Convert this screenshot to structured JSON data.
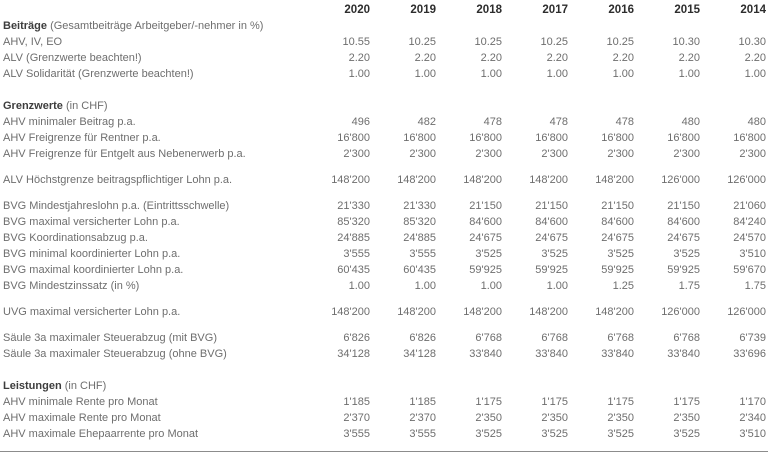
{
  "table": {
    "years": [
      "2020",
      "2019",
      "2018",
      "2017",
      "2016",
      "2015",
      "2014"
    ],
    "colors": {
      "text": "#6e6e6e",
      "heading": "#3d3d3d",
      "years": "#2d2d2d",
      "rule": "#8c8c8c"
    },
    "sections": [
      {
        "title": "Beiträge",
        "note": "(Gesamtbeiträge Arbeitgeber/-nehmer in %)",
        "groups": [
          [
            {
              "label": "AHV, IV, EO",
              "values": [
                "10.55",
                "10.25",
                "10.25",
                "10.25",
                "10.25",
                "10.30",
                "10.30"
              ]
            },
            {
              "label": "ALV (Grenzwerte beachten!)",
              "values": [
                "2.20",
                "2.20",
                "2.20",
                "2.20",
                "2.20",
                "2.20",
                "2.20"
              ]
            },
            {
              "label": "ALV Solidarität (Grenzwerte beachten!)",
              "values": [
                "1.00",
                "1.00",
                "1.00",
                "1.00",
                "1.00",
                "1.00",
                "1.00"
              ]
            }
          ]
        ]
      },
      {
        "title": "Grenzwerte",
        "note": "(in CHF)",
        "groups": [
          [
            {
              "label": "AHV minimaler Beitrag p.a.",
              "values": [
                "496",
                "482",
                "478",
                "478",
                "478",
                "480",
                "480"
              ]
            },
            {
              "label": "AHV Freigrenze für Rentner p.a.",
              "values": [
                "16'800",
                "16'800",
                "16'800",
                "16'800",
                "16'800",
                "16'800",
                "16'800"
              ]
            },
            {
              "label": "AHV Freigrenze für Entgelt aus Nebenerwerb p.a.",
              "values": [
                "2'300",
                "2'300",
                "2'300",
                "2'300",
                "2'300",
                "2'300",
                "2'300"
              ]
            }
          ],
          [
            {
              "label": "ALV Höchstgrenze beitragspflichtiger Lohn p.a.",
              "values": [
                "148'200",
                "148'200",
                "148'200",
                "148'200",
                "148'200",
                "126'000",
                "126'000"
              ]
            }
          ],
          [
            {
              "label": "BVG Mindestjahreslohn p.a. (Eintrittsschwelle)",
              "values": [
                "21'330",
                "21'330",
                "21'150",
                "21'150",
                "21'150",
                "21'150",
                "21'060"
              ]
            },
            {
              "label": "BVG maximal versicherter Lohn p.a.",
              "values": [
                "85'320",
                "85'320",
                "84'600",
                "84'600",
                "84'600",
                "84'600",
                "84'240"
              ]
            },
            {
              "label": "BVG Koordinationsabzug p.a.",
              "values": [
                "24'885",
                "24'885",
                "24'675",
                "24'675",
                "24'675",
                "24'675",
                "24'570"
              ]
            },
            {
              "label": "BVG minimal koordinierter Lohn p.a.",
              "values": [
                "3'555",
                "3'555",
                "3'525",
                "3'525",
                "3'525",
                "3'525",
                "3'510"
              ]
            },
            {
              "label": "BVG maximal koordinierter Lohn p.a.",
              "values": [
                "60'435",
                "60'435",
                "59'925",
                "59'925",
                "59'925",
                "59'925",
                "59'670"
              ]
            },
            {
              "label": "BVG Mindestzinssatz (in %)",
              "values": [
                "1.00",
                "1.00",
                "1.00",
                "1.00",
                "1.25",
                "1.75",
                "1.75"
              ]
            }
          ],
          [
            {
              "label": "UVG maximal versicherter Lohn p.a.",
              "values": [
                "148'200",
                "148'200",
                "148'200",
                "148'200",
                "148'200",
                "126'000",
                "126'000"
              ]
            }
          ],
          [
            {
              "label": "Säule 3a maximaler Steuerabzug (mit BVG)",
              "values": [
                "6'826",
                "6'826",
                "6'768",
                "6'768",
                "6'768",
                "6'768",
                "6'739"
              ]
            },
            {
              "label": "Säule 3a maximaler Steuerabzug (ohne BVG)",
              "values": [
                "34'128",
                "34'128",
                "33'840",
                "33'840",
                "33'840",
                "33'840",
                "33'696"
              ]
            }
          ]
        ]
      },
      {
        "title": "Leistungen",
        "note": "(in CHF)",
        "groups": [
          [
            {
              "label": "AHV minimale Rente pro Monat",
              "values": [
                "1'185",
                "1'185",
                "1'175",
                "1'175",
                "1'175",
                "1'175",
                "1'170"
              ]
            },
            {
              "label": "AHV maximale Rente pro Monat",
              "values": [
                "2'370",
                "2'370",
                "2'350",
                "2'350",
                "2'350",
                "2'350",
                "2'340"
              ]
            },
            {
              "label": "AHV maximale Ehepaarrente pro Monat",
              "values": [
                "3'555",
                "3'555",
                "3'525",
                "3'525",
                "3'525",
                "3'525",
                "3'510"
              ]
            }
          ]
        ]
      }
    ]
  }
}
